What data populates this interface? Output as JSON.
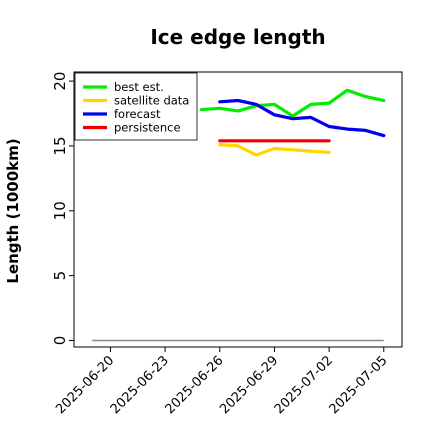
{
  "chart_data": {
    "type": "line",
    "title": "Ice edge length",
    "xlabel": "",
    "ylabel": "Length (1000km)",
    "ylim": [
      -0.5,
      20.7
    ],
    "xlim": [
      "2025-06-18",
      "2025-07-06"
    ],
    "yticks": [
      0,
      5,
      10,
      15,
      20
    ],
    "xticks": [
      "2025-06-20",
      "2025-06-23",
      "2025-06-26",
      "2025-06-29",
      "2025-07-02",
      "2025-07-05"
    ],
    "highlighted_xtick": "2025-06-26",
    "highlight_color": "#228B22",
    "grid": false,
    "legend_position": "top-left",
    "baseline": {
      "value": 0,
      "x_start": "2025-06-19",
      "x_end": "2025-07-05",
      "color": "#888888"
    },
    "series": [
      {
        "name": "best est.",
        "color": "#00ee00",
        "x": [
          "2025-06-25",
          "2025-06-26",
          "2025-06-27",
          "2025-06-28",
          "2025-06-29",
          "2025-06-30",
          "2025-07-01",
          "2025-07-02",
          "2025-07-03",
          "2025-07-04",
          "2025-07-05"
        ],
        "values": [
          17.8,
          17.9,
          17.7,
          18.1,
          18.2,
          17.3,
          18.2,
          18.3,
          19.3,
          18.8,
          18.5
        ]
      },
      {
        "name": "satellite data",
        "color": "#ffd700",
        "x": [
          "2025-06-26",
          "2025-06-27",
          "2025-06-28",
          "2025-06-29",
          "2025-06-30",
          "2025-07-01",
          "2025-07-02"
        ],
        "values": [
          15.1,
          15.0,
          14.3,
          14.8,
          14.7,
          14.6,
          14.5
        ]
      },
      {
        "name": "forecast",
        "color": "#0000ee",
        "x": [
          "2025-06-26",
          "2025-06-27",
          "2025-06-28",
          "2025-06-29",
          "2025-06-30",
          "2025-07-01",
          "2025-07-02",
          "2025-07-03",
          "2025-07-04",
          "2025-07-05"
        ],
        "values": [
          18.4,
          18.5,
          18.2,
          17.4,
          17.1,
          17.2,
          16.5,
          16.3,
          16.2,
          15.8
        ]
      },
      {
        "name": "persistence",
        "color": "#ee0000",
        "x": [
          "2025-06-26",
          "2025-07-02"
        ],
        "values": [
          15.4,
          15.4
        ]
      }
    ]
  }
}
